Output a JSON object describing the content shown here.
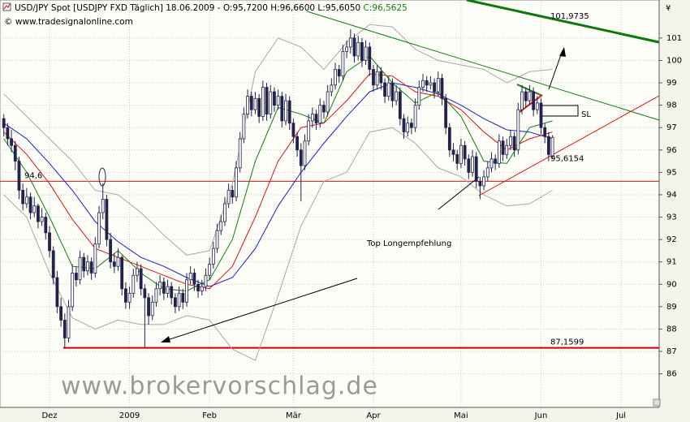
{
  "chart_data": {
    "type": "candlestick",
    "title": "USD/JPY Spot [USDJPY FXD  Täglich] 18.06.2009 - O:95,7200 H:96,6600 L:95,6050 ",
    "title_close": "C:96,5625",
    "subtitle": "© www.tradesignalonline.com",
    "currency": "¥",
    "watermark": "www.brokervorschlag.de",
    "xlim": [
      -1,
      172
    ],
    "ylim": [
      84.5,
      102.7
    ],
    "yticks": [
      86,
      87,
      88,
      89,
      90,
      91,
      92,
      93,
      94,
      95,
      96,
      97,
      98,
      99,
      100,
      101
    ],
    "xticks": [
      {
        "value": 12,
        "label": "Dez"
      },
      {
        "value": 33,
        "label": "2009"
      },
      {
        "value": 54,
        "label": "Feb"
      },
      {
        "value": 76,
        "label": "Mär"
      },
      {
        "value": 97,
        "label": "Apr"
      },
      {
        "value": 120,
        "label": "Mai"
      },
      {
        "value": 141,
        "label": "Jun"
      },
      {
        "value": 162,
        "label": "Jul"
      }
    ],
    "grid": true,
    "up_color": "#ffffff",
    "down_color": "#22224a",
    "ohlc": [
      [
        97.4,
        97.6,
        96.6,
        97.0
      ],
      [
        97.0,
        97.2,
        96.2,
        96.5
      ],
      [
        96.5,
        96.9,
        95.9,
        96.2
      ],
      [
        96.2,
        96.4,
        95.1,
        95.5
      ],
      [
        95.5,
        95.7,
        93.8,
        94.2
      ],
      [
        94.2,
        94.5,
        93.3,
        93.6
      ],
      [
        93.6,
        94.3,
        93.4,
        93.9
      ],
      [
        93.9,
        94.1,
        92.9,
        93.2
      ],
      [
        93.2,
        93.9,
        93.0,
        93.5
      ],
      [
        93.5,
        93.6,
        92.5,
        92.8
      ],
      [
        92.8,
        93.4,
        92.6,
        93.0
      ],
      [
        93.0,
        93.2,
        92.0,
        92.3
      ],
      [
        92.3,
        92.6,
        91.2,
        91.5
      ],
      [
        91.5,
        91.7,
        90.0,
        90.3
      ],
      [
        90.3,
        90.6,
        88.7,
        89.0
      ],
      [
        89.0,
        89.4,
        88.1,
        88.4
      ],
      [
        88.4,
        88.7,
        87.16,
        87.6
      ],
      [
        87.6,
        89.3,
        87.4,
        89.0
      ],
      [
        89.0,
        90.9,
        88.8,
        90.5
      ],
      [
        90.5,
        90.8,
        89.9,
        90.2
      ],
      [
        90.2,
        91.5,
        90.0,
        91.2
      ],
      [
        91.2,
        91.4,
        90.3,
        90.6
      ],
      [
        90.6,
        91.3,
        90.4,
        91.0
      ],
      [
        91.0,
        91.2,
        90.2,
        90.5
      ],
      [
        90.5,
        92.1,
        90.3,
        91.8
      ],
      [
        91.8,
        93.5,
        91.6,
        93.2
      ],
      [
        93.2,
        94.5,
        92.9,
        93.8
      ],
      [
        93.8,
        94.0,
        91.7,
        92.0
      ],
      [
        92.0,
        92.3,
        90.7,
        91.0
      ],
      [
        91.0,
        91.4,
        90.5,
        90.8
      ],
      [
        90.8,
        91.6,
        90.6,
        91.2
      ],
      [
        91.2,
        91.3,
        89.5,
        89.8
      ],
      [
        89.8,
        90.1,
        88.9,
        89.2
      ],
      [
        89.2,
        89.9,
        88.9,
        89.6
      ],
      [
        89.6,
        90.7,
        89.4,
        90.4
      ],
      [
        90.4,
        91.0,
        90.1,
        90.7
      ],
      [
        90.7,
        90.9,
        89.5,
        89.8
      ],
      [
        89.8,
        90.0,
        87.2,
        89.4
      ],
      [
        89.4,
        89.6,
        88.2,
        88.6
      ],
      [
        88.6,
        89.5,
        88.4,
        89.2
      ],
      [
        89.2,
        90.1,
        89.0,
        89.8
      ],
      [
        89.8,
        90.4,
        89.5,
        90.1
      ],
      [
        90.1,
        90.3,
        89.3,
        89.6
      ],
      [
        89.6,
        90.2,
        89.4,
        89.9
      ],
      [
        89.9,
        90.1,
        89.1,
        89.4
      ],
      [
        89.4,
        89.6,
        88.7,
        89.0
      ],
      [
        89.0,
        89.9,
        88.8,
        89.6
      ],
      [
        89.6,
        89.8,
        88.9,
        89.2
      ],
      [
        89.2,
        90.5,
        89.0,
        90.2
      ],
      [
        90.2,
        90.8,
        90.0,
        90.5
      ],
      [
        90.5,
        90.7,
        89.7,
        90.0
      ],
      [
        90.0,
        90.2,
        89.4,
        89.7
      ],
      [
        89.7,
        90.2,
        89.5,
        89.9
      ],
      [
        89.9,
        90.7,
        89.7,
        90.4
      ],
      [
        90.4,
        91.2,
        90.2,
        90.9
      ],
      [
        90.9,
        91.9,
        90.7,
        91.6
      ],
      [
        91.6,
        92.7,
        91.4,
        92.4
      ],
      [
        92.4,
        93.1,
        92.2,
        92.8
      ],
      [
        92.8,
        93.9,
        92.6,
        93.6
      ],
      [
        93.6,
        94.5,
        93.4,
        94.2
      ],
      [
        94.2,
        94.4,
        93.6,
        93.9
      ],
      [
        93.9,
        95.5,
        93.7,
        95.2
      ],
      [
        95.2,
        96.8,
        95.0,
        96.5
      ],
      [
        96.5,
        97.9,
        96.3,
        97.6
      ],
      [
        97.6,
        98.7,
        97.4,
        98.4
      ],
      [
        98.4,
        98.6,
        97.5,
        97.8
      ],
      [
        97.8,
        98.6,
        97.6,
        98.3
      ],
      [
        98.3,
        98.5,
        97.2,
        97.5
      ],
      [
        97.5,
        99.1,
        97.3,
        98.8
      ],
      [
        98.8,
        99.0,
        97.3,
        97.6
      ],
      [
        97.6,
        98.9,
        97.4,
        98.6
      ],
      [
        98.6,
        98.8,
        97.7,
        98.0
      ],
      [
        98.0,
        98.7,
        97.8,
        98.4
      ],
      [
        98.4,
        98.6,
        97.0,
        97.3
      ],
      [
        97.3,
        98.5,
        97.1,
        98.2
      ],
      [
        98.2,
        98.4,
        96.9,
        97.2
      ],
      [
        97.2,
        97.4,
        96.3,
        96.6
      ],
      [
        96.6,
        96.8,
        95.7,
        96.0
      ],
      [
        96.0,
        96.3,
        93.7,
        95.3
      ],
      [
        95.3,
        96.7,
        95.1,
        96.4
      ],
      [
        96.4,
        97.6,
        96.2,
        97.3
      ],
      [
        97.3,
        97.9,
        97.0,
        97.6
      ],
      [
        97.6,
        97.8,
        96.9,
        97.2
      ],
      [
        97.2,
        98.3,
        97.0,
        98.0
      ],
      [
        98.0,
        98.2,
        97.4,
        97.7
      ],
      [
        97.7,
        98.9,
        97.5,
        98.6
      ],
      [
        98.6,
        99.2,
        98.4,
        98.9
      ],
      [
        98.9,
        99.9,
        98.7,
        99.6
      ],
      [
        99.6,
        99.8,
        99.0,
        99.3
      ],
      [
        99.3,
        100.7,
        99.1,
        100.4
      ],
      [
        100.4,
        100.9,
        100.1,
        100.6
      ],
      [
        100.6,
        101.4,
        100.3,
        101.0
      ],
      [
        101.0,
        101.2,
        99.9,
        100.2
      ],
      [
        100.2,
        101.1,
        100.0,
        100.8
      ],
      [
        100.8,
        101.0,
        99.7,
        100.0
      ],
      [
        100.0,
        100.9,
        99.8,
        100.6
      ],
      [
        100.6,
        100.8,
        99.3,
        99.6
      ],
      [
        99.6,
        99.8,
        98.6,
        98.9
      ],
      [
        98.9,
        99.8,
        98.7,
        99.5
      ],
      [
        99.5,
        99.7,
        98.7,
        99.0
      ],
      [
        99.0,
        99.2,
        98.1,
        98.4
      ],
      [
        98.4,
        99.3,
        98.2,
        99.0
      ],
      [
        99.0,
        99.2,
        97.9,
        98.2
      ],
      [
        98.2,
        98.9,
        98.0,
        98.6
      ],
      [
        98.6,
        98.8,
        97.1,
        97.4
      ],
      [
        97.4,
        97.6,
        96.5,
        96.8
      ],
      [
        96.8,
        97.5,
        96.6,
        97.2
      ],
      [
        97.2,
        97.4,
        96.7,
        97.0
      ],
      [
        97.0,
        98.3,
        96.8,
        98.0
      ],
      [
        98.0,
        99.1,
        97.8,
        98.8
      ],
      [
        98.8,
        99.4,
        98.6,
        99.1
      ],
      [
        99.1,
        99.3,
        98.6,
        98.9
      ],
      [
        98.9,
        99.3,
        98.7,
        99.0
      ],
      [
        99.0,
        99.2,
        98.3,
        98.6
      ],
      [
        98.6,
        99.5,
        98.4,
        99.2
      ],
      [
        99.2,
        99.4,
        98.0,
        98.3
      ],
      [
        98.3,
        98.5,
        96.7,
        97.0
      ],
      [
        97.0,
        97.2,
        95.7,
        96.0
      ],
      [
        96.0,
        96.3,
        95.5,
        95.8
      ],
      [
        95.8,
        96.0,
        95.1,
        95.4
      ],
      [
        95.4,
        96.5,
        95.2,
        96.2
      ],
      [
        96.2,
        96.4,
        95.3,
        95.6
      ],
      [
        95.6,
        95.8,
        94.7,
        95.0
      ],
      [
        95.0,
        96.0,
        94.8,
        95.7
      ],
      [
        95.7,
        95.9,
        94.3,
        94.6
      ],
      [
        94.6,
        94.8,
        93.8,
        94.4
      ],
      [
        94.4,
        95.1,
        94.2,
        94.8
      ],
      [
        94.8,
        95.5,
        94.6,
        95.2
      ],
      [
        95.2,
        95.9,
        95.0,
        95.6
      ],
      [
        95.6,
        95.8,
        95.1,
        95.4
      ],
      [
        95.4,
        96.7,
        95.2,
        96.4
      ],
      [
        96.4,
        96.6,
        95.5,
        95.8
      ],
      [
        95.8,
        96.5,
        95.6,
        96.2
      ],
      [
        96.2,
        96.9,
        96.0,
        96.6
      ],
      [
        96.6,
        96.8,
        95.7,
        96.0
      ],
      [
        96.0,
        98.1,
        95.8,
        97.8
      ],
      [
        97.8,
        98.9,
        97.6,
        98.6
      ],
      [
        98.6,
        98.8,
        97.9,
        98.2
      ],
      [
        98.2,
        98.9,
        98.0,
        98.6
      ],
      [
        98.6,
        98.8,
        97.5,
        97.8
      ],
      [
        97.8,
        98.4,
        97.6,
        98.1
      ],
      [
        98.1,
        98.3,
        96.7,
        97.0
      ],
      [
        97.0,
        97.2,
        96.3,
        96.6
      ],
      [
        96.6,
        96.8,
        95.5,
        95.8
      ],
      [
        95.72,
        96.66,
        95.605,
        96.5625
      ]
    ],
    "indicators": {
      "x": [
        0,
        6,
        12,
        18,
        24,
        30,
        36,
        42,
        48,
        54,
        60,
        66,
        72,
        78,
        84,
        90,
        96,
        102,
        108,
        114,
        120,
        126,
        132,
        138,
        144
      ],
      "series": [
        {
          "color": "#a8a8a8",
          "values": [
            98.5,
            97.5,
            96.5,
            95.5,
            94.2,
            94.0,
            93.2,
            92.2,
            91.3,
            91.5,
            94.5,
            99.5,
            101.0,
            100.6,
            99.6,
            100.8,
            101.6,
            101.5,
            100.5,
            100.0,
            99.8,
            99.6,
            99.0,
            99.5,
            99.6
          ]
        },
        {
          "color": "#a8a8a8",
          "values": [
            94.0,
            93.0,
            90.5,
            88.5,
            88.0,
            88.4,
            88.2,
            88.2,
            88.6,
            88.4,
            87.1,
            86.6,
            89.5,
            92.6,
            94.6,
            95.0,
            96.8,
            97.0,
            96.3,
            95.2,
            94.8,
            94.0,
            93.5,
            93.6,
            94.2
          ]
        },
        {
          "color": "#1c1cc8",
          "values": [
            97.2,
            96.5,
            95.4,
            94.2,
            92.8,
            91.9,
            91.2,
            90.8,
            90.3,
            89.9,
            90.3,
            91.6,
            93.5,
            95.0,
            96.3,
            97.5,
            98.6,
            99.0,
            98.8,
            98.5,
            98.0,
            97.4,
            96.9,
            96.8,
            96.5
          ]
        },
        {
          "color": "#e01010",
          "values": [
            96.8,
            95.8,
            94.5,
            92.9,
            91.6,
            91.2,
            90.8,
            90.4,
            90.0,
            89.8,
            90.8,
            93.0,
            95.5,
            97.0,
            97.2,
            98.2,
            99.4,
            99.3,
            98.6,
            98.4,
            97.8,
            96.8,
            96.0,
            96.5,
            96.8
          ]
        },
        {
          "color": "#108010",
          "values": [
            96.5,
            95.0,
            93.0,
            90.8,
            90.7,
            91.5,
            90.5,
            89.8,
            89.7,
            90.2,
            92.0,
            95.5,
            97.9,
            97.6,
            97.2,
            99.5,
            100.2,
            99.0,
            98.1,
            98.6,
            97.5,
            95.5,
            95.4,
            97.0,
            97.3
          ]
        }
      ]
    },
    "levels": [
      {
        "value": 94.6,
        "label": "94,6",
        "color": "#e01010"
      },
      {
        "value": 87.1599,
        "label": "87,1599",
        "color": "#d00000"
      }
    ],
    "price_labels": [
      {
        "value": 95.6154,
        "label": "95,6154",
        "color": "#d00000"
      },
      {
        "value": 101.9735,
        "label": "101,9735",
        "color": "#108010"
      }
    ],
    "annotations": [
      {
        "text": "SL",
        "color": "#1c1cc8"
      },
      {
        "text": "Top Longempfehlung",
        "color": "#1c1cc8"
      }
    ]
  }
}
